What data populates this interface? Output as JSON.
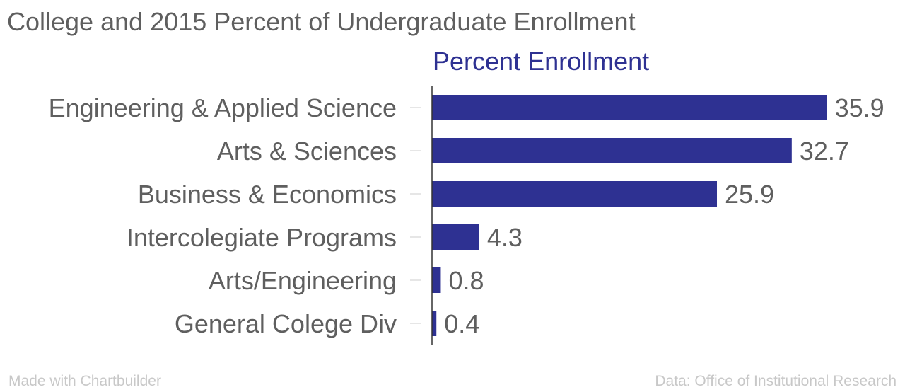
{
  "chart_data": {
    "type": "bar",
    "orientation": "horizontal",
    "title": "College and 2015 Percent of Undergraduate Enrollment",
    "categories": [
      "Engineering & Applied Science",
      "Arts & Sciences",
      "Business & Economics",
      "Intercolegiate Programs",
      "Arts/Engineering",
      "General Colege Div"
    ],
    "series": [
      {
        "name": "Percent Enrollment",
        "values": [
          35.9,
          32.7,
          25.9,
          4.3,
          0.8,
          0.4
        ],
        "labels": [
          "35.9",
          "32.7",
          "25.9",
          "4.3",
          "0.8",
          "0.4"
        ],
        "color": "#2e3192"
      }
    ],
    "xlim": [
      0,
      40
    ],
    "grid": false,
    "data_labels": true
  },
  "footer": {
    "credit_left": "Made with Chartbuilder",
    "credit_right": "Data: Office of Institutional Research"
  },
  "colors": {
    "bar": "#2e3192",
    "text": "#5f5f5f",
    "muted": "#c8c8c8"
  }
}
